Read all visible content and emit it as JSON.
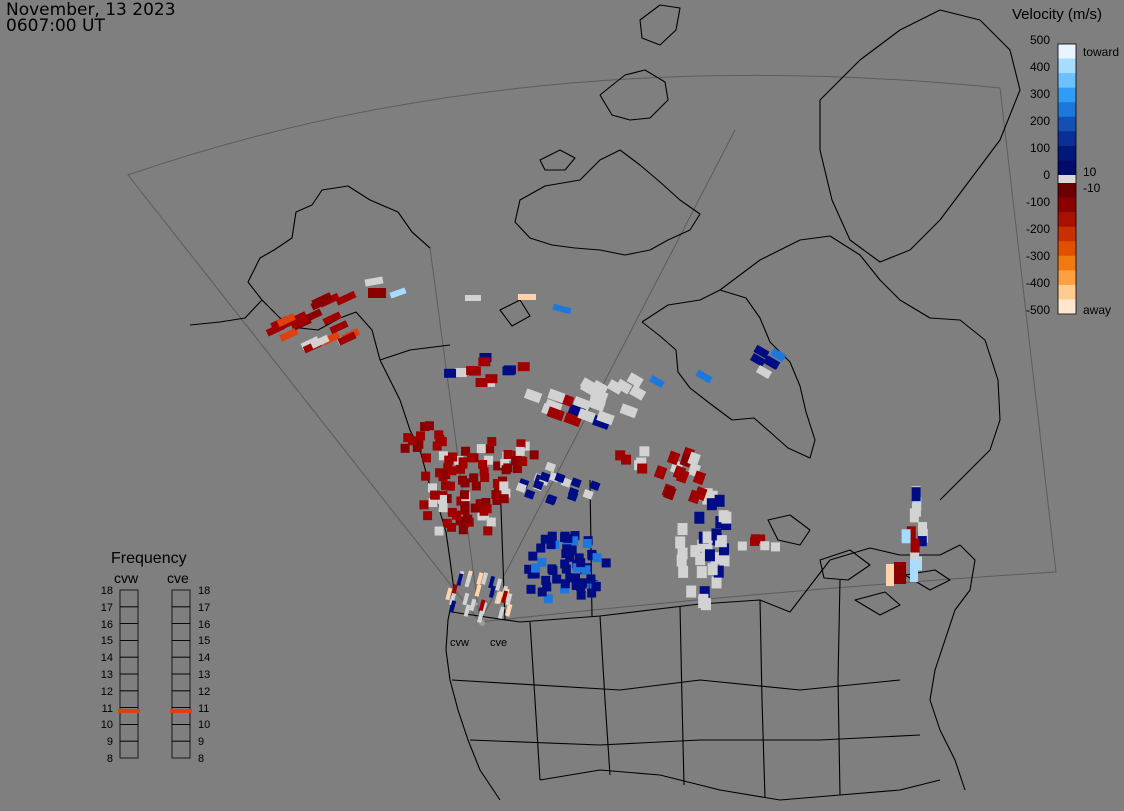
{
  "header": {
    "date": "November, 13 2023",
    "time": "0607:00 UT"
  },
  "colorbar": {
    "title": "Velocity (m/s)",
    "ticks": [
      "500",
      "400",
      "300",
      "200",
      "100",
      "0",
      "-100",
      "-200",
      "-300",
      "-400",
      "-500"
    ],
    "inner_pos": "10",
    "inner_neg": "-10",
    "toward_label": "toward",
    "away_label": "away",
    "colors_toward": [
      "#e8f4ff",
      "#a8dcff",
      "#6cc0ff",
      "#2f9cf6",
      "#1c78dc",
      "#1450b4",
      "#0c2f96",
      "#00187a",
      "#000c6a"
    ],
    "colors_away": [
      "#6a0000",
      "#8c0000",
      "#a81000",
      "#c83000",
      "#e05000",
      "#f07a10",
      "#ffa040",
      "#ffcc90",
      "#ffe6cc"
    ]
  },
  "frequency": {
    "title": "Frequency",
    "columns": [
      "cvw",
      "cve"
    ],
    "levels": [
      "18",
      "17",
      "16",
      "15",
      "14",
      "13",
      "12",
      "11",
      "10",
      "9",
      "8"
    ],
    "cvw_value": 10.8,
    "cve_value": 10.8,
    "marker_color": "#e04010"
  },
  "radar_sites": [
    "cvw",
    "cve"
  ],
  "colors": {
    "background": "#7f7f7f",
    "coastline": "#000000",
    "fov_outline": "#5c5c5c",
    "ground_scatter": "#d2d2d2"
  }
}
